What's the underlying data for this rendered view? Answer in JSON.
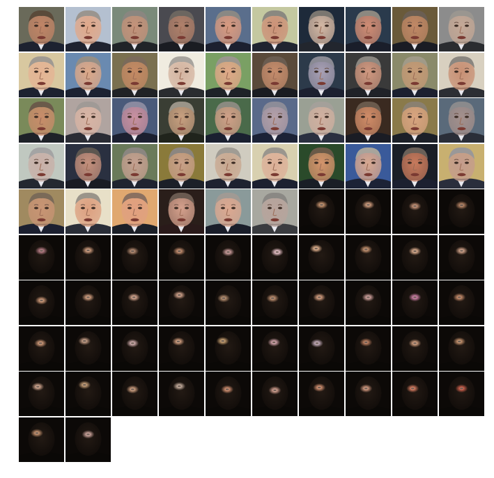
{
  "figure": {
    "type": "image-grid",
    "columns": 10,
    "rows": 10,
    "tile_count": 92,
    "groups": [
      {
        "kind": "face-photo",
        "count": 46,
        "description_colors": {
          "skin": "#c98f6c",
          "background": "#3c4658",
          "suit": "#1a1d26",
          "hair": "#8c8a86"
        }
      },
      {
        "kind": "dark-masked-face",
        "count": 46,
        "description_colors": {
          "background": "#0d0a08",
          "face": "#1c1510",
          "glow": "#d9a17c"
        }
      }
    ],
    "tiles": [
      {
        "kind": "face",
        "bg": "#6a6a5a",
        "skin": "#c08466",
        "hair": "#5a4a3a",
        "suit": "#1d2230"
      },
      {
        "kind": "face",
        "bg": "#b4c0d0",
        "skin": "#e0a88a",
        "hair": "#9a958f",
        "suit": "#1f2330"
      },
      {
        "kind": "face",
        "bg": "#7a8a7a",
        "skin": "#c4927a",
        "hair": "#8a8680",
        "suit": "#202428"
      },
      {
        "kind": "face",
        "bg": "#4a4a50",
        "skin": "#b0806a",
        "hair": "#6c6660",
        "suit": "#1a1c22"
      },
      {
        "kind": "face",
        "bg": "#5a6e8c",
        "skin": "#d89a80",
        "hair": "#8a8884",
        "suit": "#1c2030"
      },
      {
        "kind": "face",
        "bg": "#c4c8a0",
        "skin": "#cc9278",
        "hair": "#8a8880",
        "suit": "#202430"
      },
      {
        "kind": "face",
        "bg": "#1e2a3a",
        "skin": "#d4b8a4",
        "hair": "#7a7670",
        "suit": "#22262e"
      },
      {
        "kind": "face",
        "bg": "#2a3a4c",
        "skin": "#d08c74",
        "hair": "#8c8880",
        "suit": "#1a1e2a"
      },
      {
        "kind": "face",
        "bg": "#6a5a3a",
        "skin": "#c08866",
        "hair": "#6a5e52",
        "suit": "#1a1c24"
      },
      {
        "kind": "face",
        "bg": "#8c8c8c",
        "skin": "#c4a896",
        "hair": "#9a9690",
        "suit": "#2a2c30"
      },
      {
        "kind": "face",
        "bg": "#d8c8a0",
        "skin": "#e4b494",
        "hair": "#a09a92",
        "suit": "#1d2230"
      },
      {
        "kind": "face",
        "bg": "#6a8ab0",
        "skin": "#dca888",
        "hair": "#948e86",
        "suit": "#1c2232"
      },
      {
        "kind": "face",
        "bg": "#7a7050",
        "skin": "#c48a64",
        "hair": "#7a6a5a",
        "suit": "#202226"
      },
      {
        "kind": "face",
        "bg": "#f0ece0",
        "skin": "#d4b4a0",
        "hair": "#a8a49e",
        "suit": "#2a2c30"
      },
      {
        "kind": "face",
        "bg": "#7aa064",
        "skin": "#e0a888",
        "hair": "#9a968e",
        "suit": "#1e2228"
      },
      {
        "kind": "face",
        "bg": "#5a4a3a",
        "skin": "#c48c6c",
        "hair": "#6a5c50",
        "suit": "#1a1c22"
      },
      {
        "kind": "face",
        "bg": "#2c3a4a",
        "skin": "#a8a0b4",
        "hair": "#8a8a94",
        "suit": "#1c2030"
      },
      {
        "kind": "face",
        "bg": "#3a3a3a",
        "skin": "#d09880",
        "hair": "#8a8680",
        "suit": "#202228"
      },
      {
        "kind": "face",
        "bg": "#8a8a6a",
        "skin": "#c49a76",
        "hair": "#a09a88",
        "suit": "#1c2030"
      },
      {
        "kind": "face",
        "bg": "#d8d0c0",
        "skin": "#c89074",
        "hair": "#8a8680",
        "suit": "#2c2e34"
      },
      {
        "kind": "face",
        "bg": "#7a8a5a",
        "skin": "#c88c6a",
        "hair": "#6a5a4a",
        "suit": "#1e2228"
      },
      {
        "kind": "face",
        "bg": "#b0a4a0",
        "skin": "#d8b4a4",
        "hair": "#a09a96",
        "suit": "#2a2c34"
      },
      {
        "kind": "face",
        "bg": "#4a5a7a",
        "skin": "#c890a0",
        "hair": "#8a8aa0",
        "suit": "#1c2030"
      },
      {
        "kind": "face",
        "bg": "#3a3e34",
        "skin": "#c8a080",
        "hair": "#9a9488",
        "suit": "#20241c"
      },
      {
        "kind": "face",
        "bg": "#4a6a4a",
        "skin": "#d0a088",
        "hair": "#8a8a80",
        "suit": "#1a2030"
      },
      {
        "kind": "face",
        "bg": "#5a6a8a",
        "skin": "#b4a0a8",
        "hair": "#8c8c98",
        "suit": "#1c2236"
      },
      {
        "kind": "face",
        "bg": "#9aa094",
        "skin": "#d0b0a0",
        "hair": "#a4a09a",
        "suit": "#2a3040"
      },
      {
        "kind": "face",
        "bg": "#3a2a20",
        "skin": "#d08c68",
        "hair": "#6a5a4c",
        "suit": "#1a1c24"
      },
      {
        "kind": "face",
        "bg": "#8a7a4a",
        "skin": "#d8a480",
        "hair": "#8a8070",
        "suit": "#1c2028"
      },
      {
        "kind": "face",
        "bg": "#5a6a7a",
        "skin": "#a4908c",
        "hair": "#8a8a8c",
        "suit": "#2a2e38"
      },
      {
        "kind": "face",
        "bg": "#c0c8c0",
        "skin": "#c8b0a8",
        "hair": "#a4a4a4",
        "suit": "#242830"
      },
      {
        "kind": "face",
        "bg": "#2a3040",
        "skin": "#c4907c",
        "hair": "#5c5650",
        "suit": "#1a1c24"
      },
      {
        "kind": "face",
        "bg": "#6a7a5a",
        "skin": "#c4a090",
        "hair": "#8a8680",
        "suit": "#202430"
      },
      {
        "kind": "face",
        "bg": "#8a7a3a",
        "skin": "#c8a088",
        "hair": "#8c8680",
        "suit": "#1c2028"
      },
      {
        "kind": "face",
        "bg": "#d0ccc0",
        "skin": "#c8a890",
        "hair": "#a09c94",
        "suit": "#1e2230"
      },
      {
        "kind": "face",
        "bg": "#d8d0b0",
        "skin": "#dcb098",
        "hair": "#9a968e",
        "suit": "#1c2030"
      },
      {
        "kind": "face",
        "bg": "#2a4a2a",
        "skin": "#d4946c",
        "hair": "#6a5a48",
        "suit": "#1a1e26"
      },
      {
        "kind": "face",
        "bg": "#3a5a9a",
        "skin": "#d8a890",
        "hair": "#a8a49c",
        "suit": "#1c2236"
      },
      {
        "kind": "face",
        "bg": "#1a1e26",
        "skin": "#c87a5c",
        "hair": "#6a6058",
        "suit": "#1c2030"
      },
      {
        "kind": "face",
        "bg": "#c8b070",
        "skin": "#c49c8c",
        "hair": "#9a9898",
        "suit": "#2a2e3c"
      },
      {
        "kind": "face",
        "bg": "#a08a60",
        "skin": "#c89474",
        "hair": "#7a6a58",
        "suit": "#1c2030"
      },
      {
        "kind": "face",
        "bg": "#e8e0c8",
        "skin": "#dca080",
        "hair": "#9a948a",
        "suit": "#2a2e38"
      },
      {
        "kind": "face",
        "bg": "#e0a870",
        "skin": "#e0a080",
        "hair": "#8a7060",
        "suit": "#1c2028"
      },
      {
        "kind": "face",
        "bg": "#2a1e1a",
        "skin": "#d4a08c",
        "hair": "#6a5a50",
        "suit": "#2a1a1a"
      },
      {
        "kind": "face",
        "bg": "#8a9a9a",
        "skin": "#dca890",
        "hair": "#a09a94",
        "suit": "#1a1e2a"
      },
      {
        "kind": "face",
        "bg": "#a8a8a0",
        "skin": "#b8a49c",
        "hair": "#8a8884",
        "suit": "#3a3c40"
      },
      {
        "kind": "dark",
        "glow": "#c8946e",
        "gx": 0.5,
        "gy": 0.35
      },
      {
        "kind": "dark",
        "glow": "#d4a080",
        "gx": 0.5,
        "gy": 0.35
      },
      {
        "kind": "dark",
        "glow": "#c89478",
        "gx": 0.5,
        "gy": 0.38
      },
      {
        "kind": "dark",
        "glow": "#b88464",
        "gx": 0.5,
        "gy": 0.36
      },
      {
        "kind": "dark",
        "glow": "#b87c86",
        "gx": 0.5,
        "gy": 0.35
      },
      {
        "kind": "dark",
        "glow": "#d4a080",
        "gx": 0.5,
        "gy": 0.34
      },
      {
        "kind": "dark",
        "glow": "#b48a70",
        "gx": 0.45,
        "gy": 0.36
      },
      {
        "kind": "dark",
        "glow": "#c89070",
        "gx": 0.45,
        "gy": 0.36
      },
      {
        "kind": "dark",
        "glow": "#d0a0a0",
        "gx": 0.5,
        "gy": 0.38
      },
      {
        "kind": "dark",
        "glow": "#f0c8d0",
        "gx": 0.55,
        "gy": 0.38
      },
      {
        "kind": "dark",
        "glow": "#e4b490",
        "gx": 0.38,
        "gy": 0.3
      },
      {
        "kind": "dark",
        "glow": "#c89470",
        "gx": 0.45,
        "gy": 0.32
      },
      {
        "kind": "dark",
        "glow": "#e0b090",
        "gx": 0.5,
        "gy": 0.36
      },
      {
        "kind": "dark",
        "glow": "#d4a48a",
        "gx": 0.5,
        "gy": 0.35
      },
      {
        "kind": "dark",
        "glow": "#d09a78",
        "gx": 0.5,
        "gy": 0.45
      },
      {
        "kind": "dark",
        "glow": "#d4a080",
        "gx": 0.5,
        "gy": 0.38
      },
      {
        "kind": "dark",
        "glow": "#d8a890",
        "gx": 0.48,
        "gy": 0.38
      },
      {
        "kind": "dark",
        "glow": "#d4a48c",
        "gx": 0.45,
        "gy": 0.33
      },
      {
        "kind": "dark",
        "glow": "#b89070",
        "gx": 0.4,
        "gy": 0.4
      },
      {
        "kind": "dark",
        "glow": "#c09070",
        "gx": 0.45,
        "gy": 0.4
      },
      {
        "kind": "dark",
        "glow": "#d8a080",
        "gx": 0.45,
        "gy": 0.38
      },
      {
        "kind": "dark",
        "glow": "#d4a4a0",
        "gx": 0.5,
        "gy": 0.38
      },
      {
        "kind": "dark",
        "glow": "#d080a8",
        "gx": 0.5,
        "gy": 0.38
      },
      {
        "kind": "dark",
        "glow": "#c88c6a",
        "gx": 0.45,
        "gy": 0.38
      },
      {
        "kind": "dark",
        "glow": "#d09a78",
        "gx": 0.48,
        "gy": 0.38
      },
      {
        "kind": "dark",
        "glow": "#c8a088",
        "gx": 0.42,
        "gy": 0.33
      },
      {
        "kind": "dark",
        "glow": "#d4b0b0",
        "gx": 0.45,
        "gy": 0.38
      },
      {
        "kind": "dark",
        "glow": "#d4a080",
        "gx": 0.43,
        "gy": 0.34
      },
      {
        "kind": "dark",
        "glow": "#c8a070",
        "gx": 0.38,
        "gy": 0.33
      },
      {
        "kind": "dark",
        "glow": "#d8a8b0",
        "gx": 0.48,
        "gy": 0.36
      },
      {
        "kind": "dark",
        "glow": "#c8b0c0",
        "gx": 0.4,
        "gy": 0.38
      },
      {
        "kind": "dark",
        "glow": "#c08060",
        "gx": 0.45,
        "gy": 0.36
      },
      {
        "kind": "dark",
        "glow": "#d4a080",
        "gx": 0.5,
        "gy": 0.38
      },
      {
        "kind": "dark",
        "glow": "#c8946e",
        "gx": 0.45,
        "gy": 0.34
      },
      {
        "kind": "dark",
        "glow": "#d4a890",
        "gx": 0.42,
        "gy": 0.34
      },
      {
        "kind": "dark",
        "glow": "#c8a078",
        "gx": 0.42,
        "gy": 0.3
      },
      {
        "kind": "dark",
        "glow": "#d0a080",
        "gx": 0.45,
        "gy": 0.4
      },
      {
        "kind": "dark",
        "glow": "#c8b0a0",
        "gx": 0.45,
        "gy": 0.33
      },
      {
        "kind": "dark",
        "glow": "#d49070",
        "gx": 0.48,
        "gy": 0.4
      },
      {
        "kind": "dark",
        "glow": "#d4a090",
        "gx": 0.5,
        "gy": 0.42
      },
      {
        "kind": "dark",
        "glow": "#d49070",
        "gx": 0.45,
        "gy": 0.36
      },
      {
        "kind": "dark",
        "glow": "#d49a80",
        "gx": 0.45,
        "gy": 0.38
      },
      {
        "kind": "dark",
        "glow": "#d87c60",
        "gx": 0.45,
        "gy": 0.38
      },
      {
        "kind": "dark",
        "glow": "#d0604c",
        "gx": 0.5,
        "gy": 0.38
      },
      {
        "kind": "dark",
        "glow": "#c89470",
        "gx": 0.4,
        "gy": 0.35
      },
      {
        "kind": "dark",
        "glow": "#d0a8a0",
        "gx": 0.5,
        "gy": 0.38
      }
    ]
  }
}
